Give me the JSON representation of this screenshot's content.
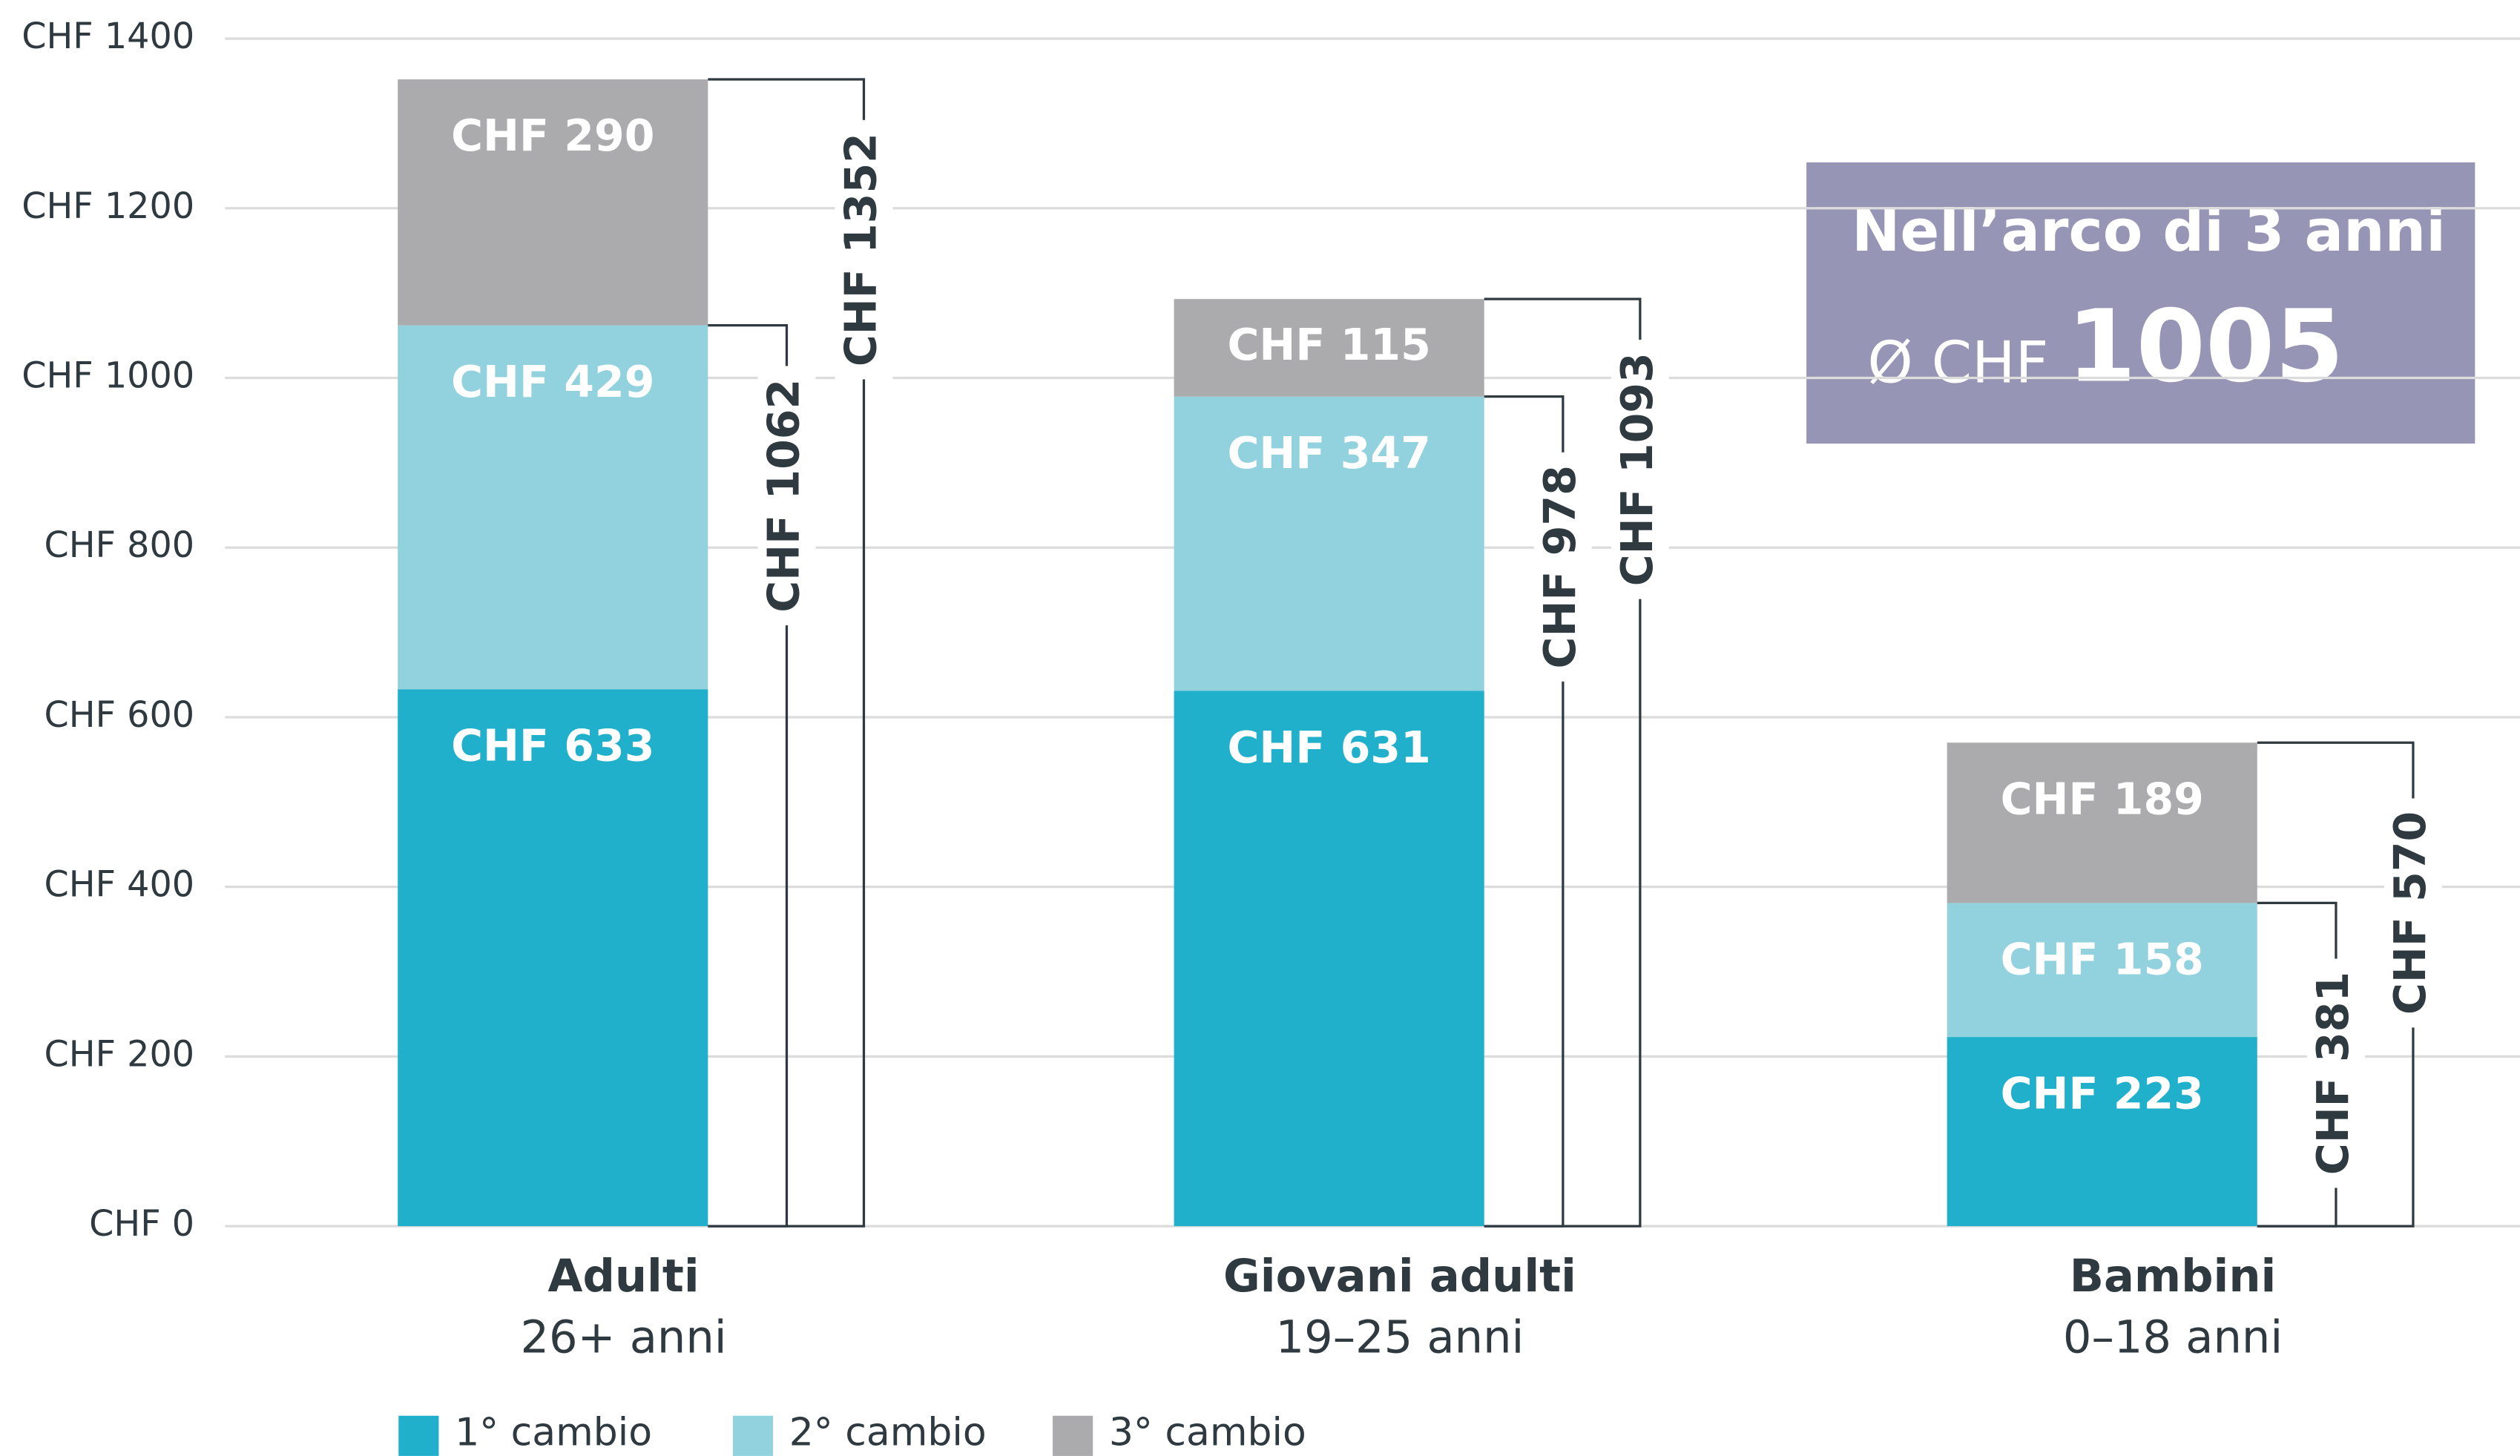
{
  "chart_data": {
    "type": "stacked_bar",
    "categories": [
      [
        "Adulti",
        "26+ anni"
      ],
      [
        "Giovani adulti",
        "19–25 anni"
      ],
      [
        "Bambini",
        "0–18 anni"
      ]
    ],
    "series": [
      {
        "name": "1° cambio",
        "color": "#20b0cc",
        "values": [
          633,
          631,
          223
        ],
        "value_labels": [
          "CHF 633",
          "CHF 631",
          "CHF 223"
        ]
      },
      {
        "name": "2° cambio",
        "color": "#92d1de",
        "values": [
          429,
          347,
          158
        ],
        "value_labels": [
          "CHF 429",
          "CHF 347",
          "CHF 158"
        ]
      },
      {
        "name": "3° cambio",
        "color": "#abaaac",
        "values": [
          290,
          115,
          189
        ],
        "value_labels": [
          "CHF 290",
          "CHF 115",
          "CHF 189"
        ]
      }
    ],
    "totals_first_two": [
      {
        "value": 1062,
        "label": "CHF 1062"
      },
      {
        "value": 978,
        "label": "CHF 978"
      },
      {
        "value": 381,
        "label": "CHF 381"
      }
    ],
    "totals_all": [
      {
        "value": 1352,
        "label": "CHF 1352"
      },
      {
        "value": 1093,
        "label": "CHF 1093"
      },
      {
        "value": 570,
        "label": "CHF 570"
      }
    ],
    "ylim": [
      0,
      1400
    ],
    "yticks": [
      {
        "value": 0,
        "label": "CHF 0"
      },
      {
        "value": 200,
        "label": "CHF 200"
      },
      {
        "value": 400,
        "label": "CHF 400"
      },
      {
        "value": 600,
        "label": "CHF 600"
      },
      {
        "value": 800,
        "label": "CHF 800"
      },
      {
        "value": 1000,
        "label": "CHF 1000"
      },
      {
        "value": 1200,
        "label": "CHF 1200"
      },
      {
        "value": 1400,
        "label": "CHF 1400"
      }
    ],
    "grid": true,
    "info_box": {
      "title": "Nell’arco di 3 anni",
      "prefix": "Ø CHF",
      "value": 1005,
      "color": "#9795b5"
    }
  }
}
